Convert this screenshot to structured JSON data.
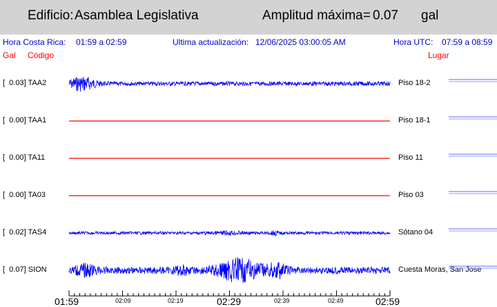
{
  "header": {
    "building_label": "Edificio:",
    "building_name": "Asamblea Legislativa",
    "max_amp_label": "Amplitud máxima=",
    "max_amp_value": "0.07",
    "max_amp_unit": "gal"
  },
  "info": {
    "local_time_label": "Hora Costa Rica:",
    "local_time_range": "01:59 a 02:59",
    "updated_label": "Ultima actualización:",
    "updated_value": "12/06/2025 03:00:05 AM",
    "utc_label": "Hora UTC:",
    "utc_range": "07:59 a 08:59"
  },
  "columns": {
    "gal": "Gal",
    "code": "Código",
    "place": "Lugar"
  },
  "stations": [
    {
      "label": "[  0.03] TAA2",
      "place": "Piso 18-2",
      "color": "#0000ff",
      "amplitude": 0.03
    },
    {
      "label": "[  0.00] TAA1",
      "place": "Piso 18-1",
      "color": "#ff0000",
      "amplitude": 0.0
    },
    {
      "label": "[  0.00] TA11",
      "place": "Piso 11",
      "color": "#ff0000",
      "amplitude": 0.0
    },
    {
      "label": "[  0.00] TA03",
      "place": "Piso 03",
      "color": "#ff0000",
      "amplitude": 0.0
    },
    {
      "label": "[  0.02] TAS4",
      "place": "Sótano 04",
      "color": "#0000ff",
      "amplitude": 0.02
    },
    {
      "label": "[  0.07] SION",
      "place": "Cuesta Moras, San Jose",
      "color": "#0000ff",
      "amplitude": 0.07
    }
  ],
  "time_axis": {
    "ticks_major": [
      "01:59",
      "02:29",
      "02:59"
    ],
    "ticks_minor": [
      "02:09",
      "02:19",
      "02:39",
      "02:49"
    ]
  }
}
